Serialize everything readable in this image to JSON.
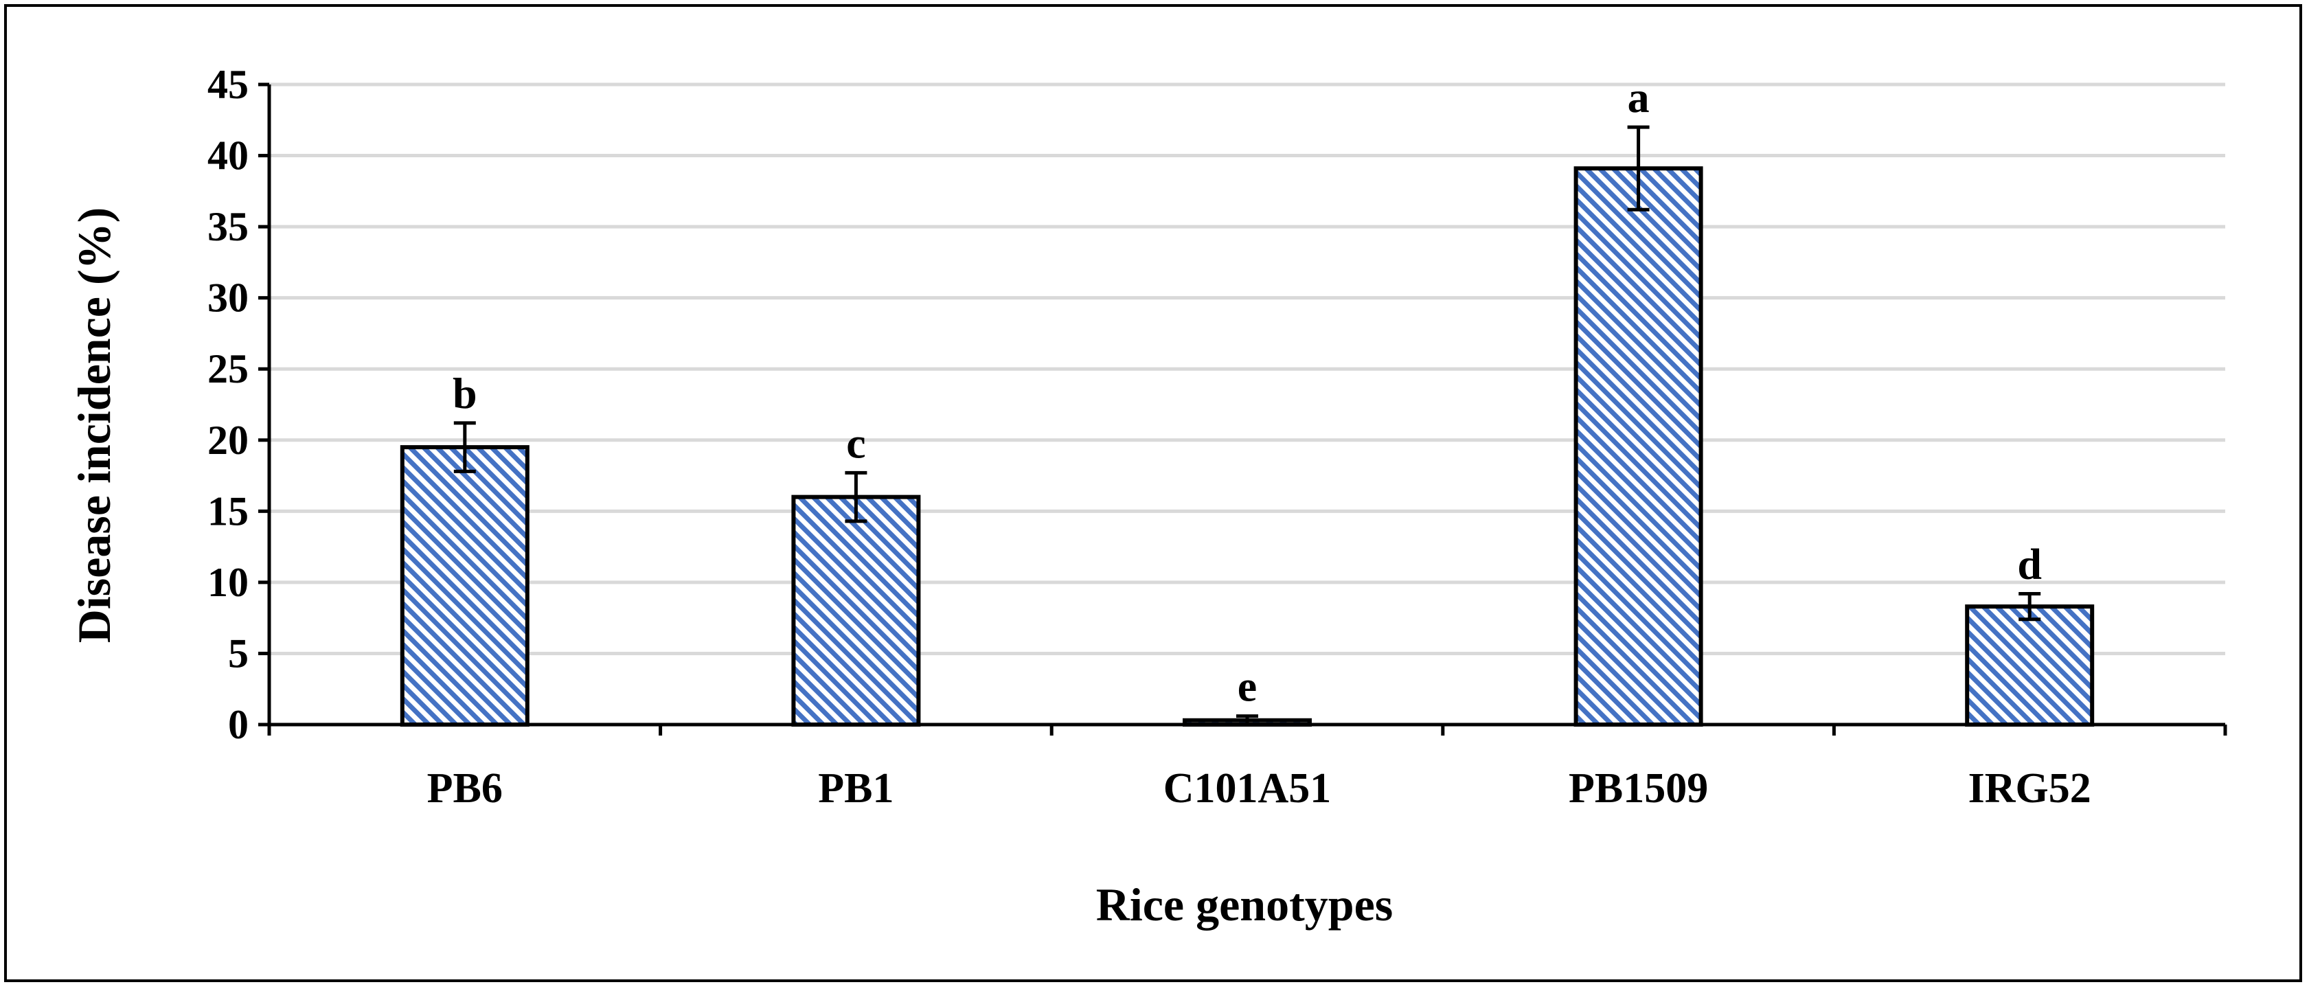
{
  "chart_data": {
    "type": "bar",
    "title": "",
    "xlabel": "Rice genotypes",
    "ylabel": "Disease incidence (%)",
    "ylim": [
      0,
      45
    ],
    "yticks": [
      0,
      5,
      10,
      15,
      20,
      25,
      30,
      35,
      40,
      45
    ],
    "ytick_labels": [
      "0",
      "5",
      "10",
      "15",
      "20",
      "25",
      "30",
      "35",
      "40",
      "45"
    ],
    "grid": true,
    "categories": [
      "PB6",
      "PB1",
      "C101A51",
      "PB1509",
      "IRG52"
    ],
    "values": [
      19.5,
      16.0,
      0.3,
      39.1,
      8.3
    ],
    "errors": [
      1.7,
      1.7,
      0.3,
      2.9,
      0.9
    ],
    "significance_letters": [
      "b",
      "c",
      "e",
      "a",
      "d"
    ],
    "colors": {
      "bar_stripe": "#4472c4",
      "bar_background": "#ffffff",
      "bar_outline": "#000000",
      "gridline": "#d9d9d9",
      "axis": "#000000"
    }
  }
}
